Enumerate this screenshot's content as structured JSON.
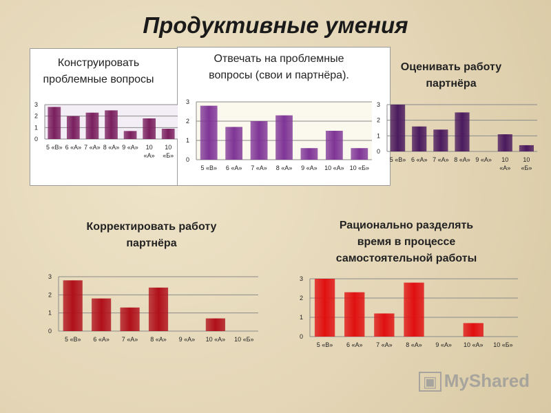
{
  "slide_title": "Продуктивные умения",
  "watermark": "MyShared",
  "chart_data": [
    {
      "type": "bar",
      "title": "Конструировать проблемные вопросы",
      "categories": [
        "5 «В»",
        "6 «А»",
        "7 «А»",
        "8 «А»",
        "9 «А»",
        "10 «А»",
        "10 «Б»"
      ],
      "values": [
        2.8,
        2.0,
        2.3,
        2.5,
        0.7,
        1.8,
        0.9
      ],
      "yticks": [
        "0",
        "1",
        "2",
        "3"
      ],
      "ylim": [
        0,
        3
      ],
      "grid": true,
      "color": "#7a1f5e"
    },
    {
      "type": "bar",
      "title": "Отвечать на проблемные вопросы (свои и партнёра).",
      "categories": [
        "5 «В»",
        "6 «А»",
        "7 «А»",
        "8 «А»",
        "9 «А»",
        "10 «А»",
        "10 «Б»"
      ],
      "values": [
        2.8,
        1.7,
        2.0,
        2.3,
        0.6,
        1.5,
        0.6
      ],
      "yticks": [
        "0",
        "1",
        "2",
        "3"
      ],
      "ylim": [
        0,
        3
      ],
      "grid": true,
      "color": "#7f3596"
    },
    {
      "type": "bar",
      "title": "Оценивать работу партнёра",
      "categories": [
        "5 «В»",
        "6 «А»",
        "7 «А»",
        "8 «А»",
        "9 «А»",
        "10 «А»",
        "10 «Б»"
      ],
      "values": [
        3.0,
        1.6,
        1.4,
        2.5,
        0,
        1.1,
        0.4
      ],
      "yticks": [
        "0",
        "1",
        "2",
        "3"
      ],
      "ylim": [
        0,
        3
      ],
      "grid": true,
      "color": "#4b1a5e"
    },
    {
      "type": "bar",
      "title": "Корректировать работу партнёра",
      "categories": [
        "5 «В»",
        "6 «А»",
        "7 «А»",
        "8 «А»",
        "9 «А»",
        "10 «А»",
        "10 «Б»"
      ],
      "values": [
        2.8,
        1.8,
        1.3,
        2.4,
        0,
        0.7,
        0
      ],
      "yticks": [
        "0",
        "1",
        "2",
        "3"
      ],
      "ylim": [
        0,
        3
      ],
      "grid": true,
      "color": "#b0101a"
    },
    {
      "type": "bar",
      "title": "Рационально разделять время в процессе самостоятельной работы",
      "categories": [
        "5 «В»",
        "6 «А»",
        "7 «А»",
        "8 «А»",
        "9 «А»",
        "10 «А»",
        "10 «Б»"
      ],
      "values": [
        3.0,
        2.3,
        1.2,
        2.8,
        0,
        0.7,
        0
      ],
      "yticks": [
        "0",
        "1",
        "2",
        "3"
      ],
      "ylim": [
        0,
        3
      ],
      "grid": true,
      "color": "#e01010"
    }
  ]
}
